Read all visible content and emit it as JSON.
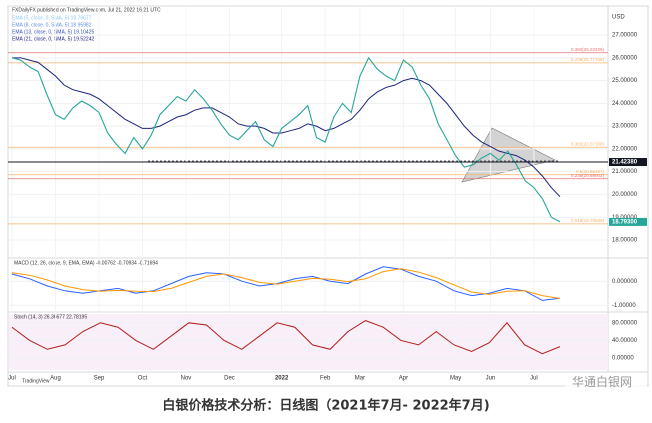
{
  "header": {
    "byline": "FXDailyFX published on TradingView.com, Jul 21, 2022 16:21 UTC",
    "legend": [
      {
        "text": "EMA (5, close, 0, SMA, 5)  18.76677",
        "color": "#8ec9f5"
      },
      {
        "text": "EMA (8, close, 0, SMA, 5)  18.95982",
        "color": "#5b8fe0"
      },
      {
        "text": "EMA (13, close, 0, SMA, 5)  19.10425",
        "color": "#2f4fb0"
      },
      {
        "text": "EMA (21, close, 0, SMA, 5)  19.52242",
        "color": "#1a237e"
      }
    ]
  },
  "chart_data": [
    {
      "type": "line",
      "unit": "USD",
      "color": "#26a69a",
      "values": [
        26.0,
        25.9,
        25.6,
        25.4,
        24.4,
        23.5,
        23.3,
        23.8,
        24.1,
        23.9,
        23.6,
        22.7,
        22.2,
        21.8,
        22.5,
        22.0,
        22.6,
        23.5,
        23.9,
        24.3,
        24.1,
        24.6,
        24.2,
        23.7,
        23.1,
        22.6,
        22.4,
        22.8,
        23.2,
        22.4,
        22.1,
        22.9,
        23.2,
        23.5,
        23.9,
        22.5,
        22.3,
        23.4,
        24.0,
        23.6,
        25.2,
        26.0,
        25.5,
        25.2,
        25.0,
        25.9,
        25.6,
        24.8,
        24.2,
        23.1,
        22.4,
        21.7,
        21.2,
        21.3,
        21.6,
        21.8,
        21.5,
        21.9,
        21.3,
        20.6,
        20.3,
        19.8,
        19.0,
        18.8
      ],
      "ema": {
        "color": "#1a237e",
        "values": [
          26.0,
          26.0,
          25.9,
          25.8,
          25.5,
          25.2,
          24.8,
          24.6,
          24.5,
          24.4,
          24.2,
          23.9,
          23.6,
          23.3,
          23.1,
          22.9,
          22.9,
          23.0,
          23.2,
          23.4,
          23.5,
          23.7,
          23.8,
          23.8,
          23.6,
          23.4,
          23.1,
          23.0,
          23.0,
          22.9,
          22.7,
          22.7,
          22.8,
          22.9,
          23.1,
          23.0,
          22.8,
          22.9,
          23.1,
          23.3,
          23.7,
          24.2,
          24.5,
          24.7,
          24.8,
          25.0,
          25.1,
          25.0,
          24.8,
          24.4,
          24.0,
          23.5,
          23.0,
          22.6,
          22.3,
          22.1,
          21.9,
          21.8,
          21.7,
          21.5,
          21.2,
          20.8,
          20.3,
          19.9
        ]
      },
      "xlim": [
        0,
        63
      ],
      "xticks": [
        {
          "value": 0,
          "label": "Jul"
        },
        {
          "value": 5,
          "label": "Aug"
        },
        {
          "value": 10,
          "label": "Sep"
        },
        {
          "value": 15,
          "label": "Oct"
        },
        {
          "value": 20,
          "label": "Nov"
        },
        {
          "value": 25,
          "label": "Dec"
        },
        {
          "value": 31,
          "label": "2022"
        },
        {
          "value": 36,
          "label": "Feb"
        },
        {
          "value": 40,
          "label": "Mar"
        },
        {
          "value": 45,
          "label": "Apr"
        },
        {
          "value": 51,
          "label": "May"
        },
        {
          "value": 55,
          "label": "Jun"
        },
        {
          "value": 60,
          "label": "Jul"
        }
      ],
      "ylim": [
        17.34,
        28.1
      ],
      "yticks": [
        {
          "value": 18,
          "label": "18.00000"
        },
        {
          "value": 19,
          "label": "19.00000"
        },
        {
          "value": 20,
          "label": "20.00000"
        },
        {
          "value": 21,
          "label": "21.00000"
        },
        {
          "value": 22,
          "label": "22.00000"
        },
        {
          "value": 23,
          "label": "23.00000"
        },
        {
          "value": 24,
          "label": "24.00000"
        },
        {
          "value": 25,
          "label": "25.00000"
        },
        {
          "value": 26,
          "label": "26.00000"
        },
        {
          "value": 27,
          "label": "27.00000"
        }
      ],
      "levels": [
        {
          "value": 26.22229,
          "label": "0.382(26.22229)",
          "color": "#e57373"
        },
        {
          "value": 25.77768,
          "label": "0.236(25.77768)",
          "color": "#f6b26b"
        },
        {
          "value": 22.07108,
          "label": "0.382(22.07108)",
          "color": "#f6b26b"
        },
        {
          "value": 20.86487,
          "label": "0.5(20.86487)",
          "color": "#f6b26b"
        },
        {
          "value": 20.69002,
          "label": "0.236(20.69002)",
          "color": "#e57373"
        },
        {
          "value": 18.70638,
          "label": "0.618(18.70638)",
          "color": "#f6b26b"
        }
      ],
      "price_tags": [
        {
          "value": 21.4238,
          "label": "21.42380",
          "color": "#131722"
        },
        {
          "value": 18.793,
          "label": "18.79300",
          "color": "#26a69a"
        }
      ]
    },
    {
      "type": "line",
      "title": "MACD (12, 26, close, 9, EMA, EMA)  -0.00762  -0.70934  -0.71694",
      "series": [
        {
          "color": "#2962ff",
          "values": [
            0.3,
            0.1,
            -0.2,
            -0.4,
            -0.5,
            -0.4,
            -0.3,
            -0.5,
            -0.4,
            -0.1,
            0.2,
            0.35,
            0.3,
            0.0,
            -0.2,
            -0.1,
            0.1,
            0.2,
            0.0,
            -0.1,
            0.3,
            0.6,
            0.5,
            0.2,
            0.0,
            -0.4,
            -0.6,
            -0.5,
            -0.3,
            -0.4,
            -0.8,
            -0.71
          ]
        },
        {
          "color": "#ff9800",
          "values": [
            0.35,
            0.25,
            0.05,
            -0.2,
            -0.35,
            -0.42,
            -0.38,
            -0.42,
            -0.43,
            -0.3,
            -0.05,
            0.2,
            0.3,
            0.15,
            -0.05,
            -0.12,
            0.0,
            0.12,
            0.08,
            -0.02,
            0.1,
            0.4,
            0.52,
            0.38,
            0.15,
            -0.15,
            -0.45,
            -0.55,
            -0.42,
            -0.4,
            -0.6,
            -0.72
          ]
        }
      ],
      "xlim": [
        0,
        31
      ],
      "ylim": [
        -1.2,
        0.8
      ],
      "yticks": [
        {
          "value": 0,
          "label": "0.000000"
        },
        {
          "value": -1,
          "label": "-1.00000"
        }
      ]
    },
    {
      "type": "line",
      "title": "Stoch (14, 3)  26.36677  22.78195",
      "series": [
        {
          "color": "#b71c1c",
          "values": [
            70,
            40,
            20,
            30,
            60,
            80,
            70,
            40,
            20,
            50,
            80,
            75,
            40,
            20,
            50,
            80,
            70,
            30,
            20,
            60,
            85,
            70,
            40,
            30,
            60,
            30,
            15,
            35,
            80,
            30,
            10,
            26
          ]
        }
      ],
      "xlim": [
        0,
        31
      ],
      "ylim": [
        -27,
        100
      ],
      "yticks": [
        {
          "value": 80,
          "label": "80.00000"
        },
        {
          "value": 40,
          "label": "40.00000"
        },
        {
          "value": 0,
          "label": "0.00000"
        }
      ]
    }
  ],
  "footer": {
    "logo": "TradingView",
    "watermark": "华通白银网",
    "caption": "白银价格技术分析：日线图（2021年7月- 2022年7月)"
  }
}
